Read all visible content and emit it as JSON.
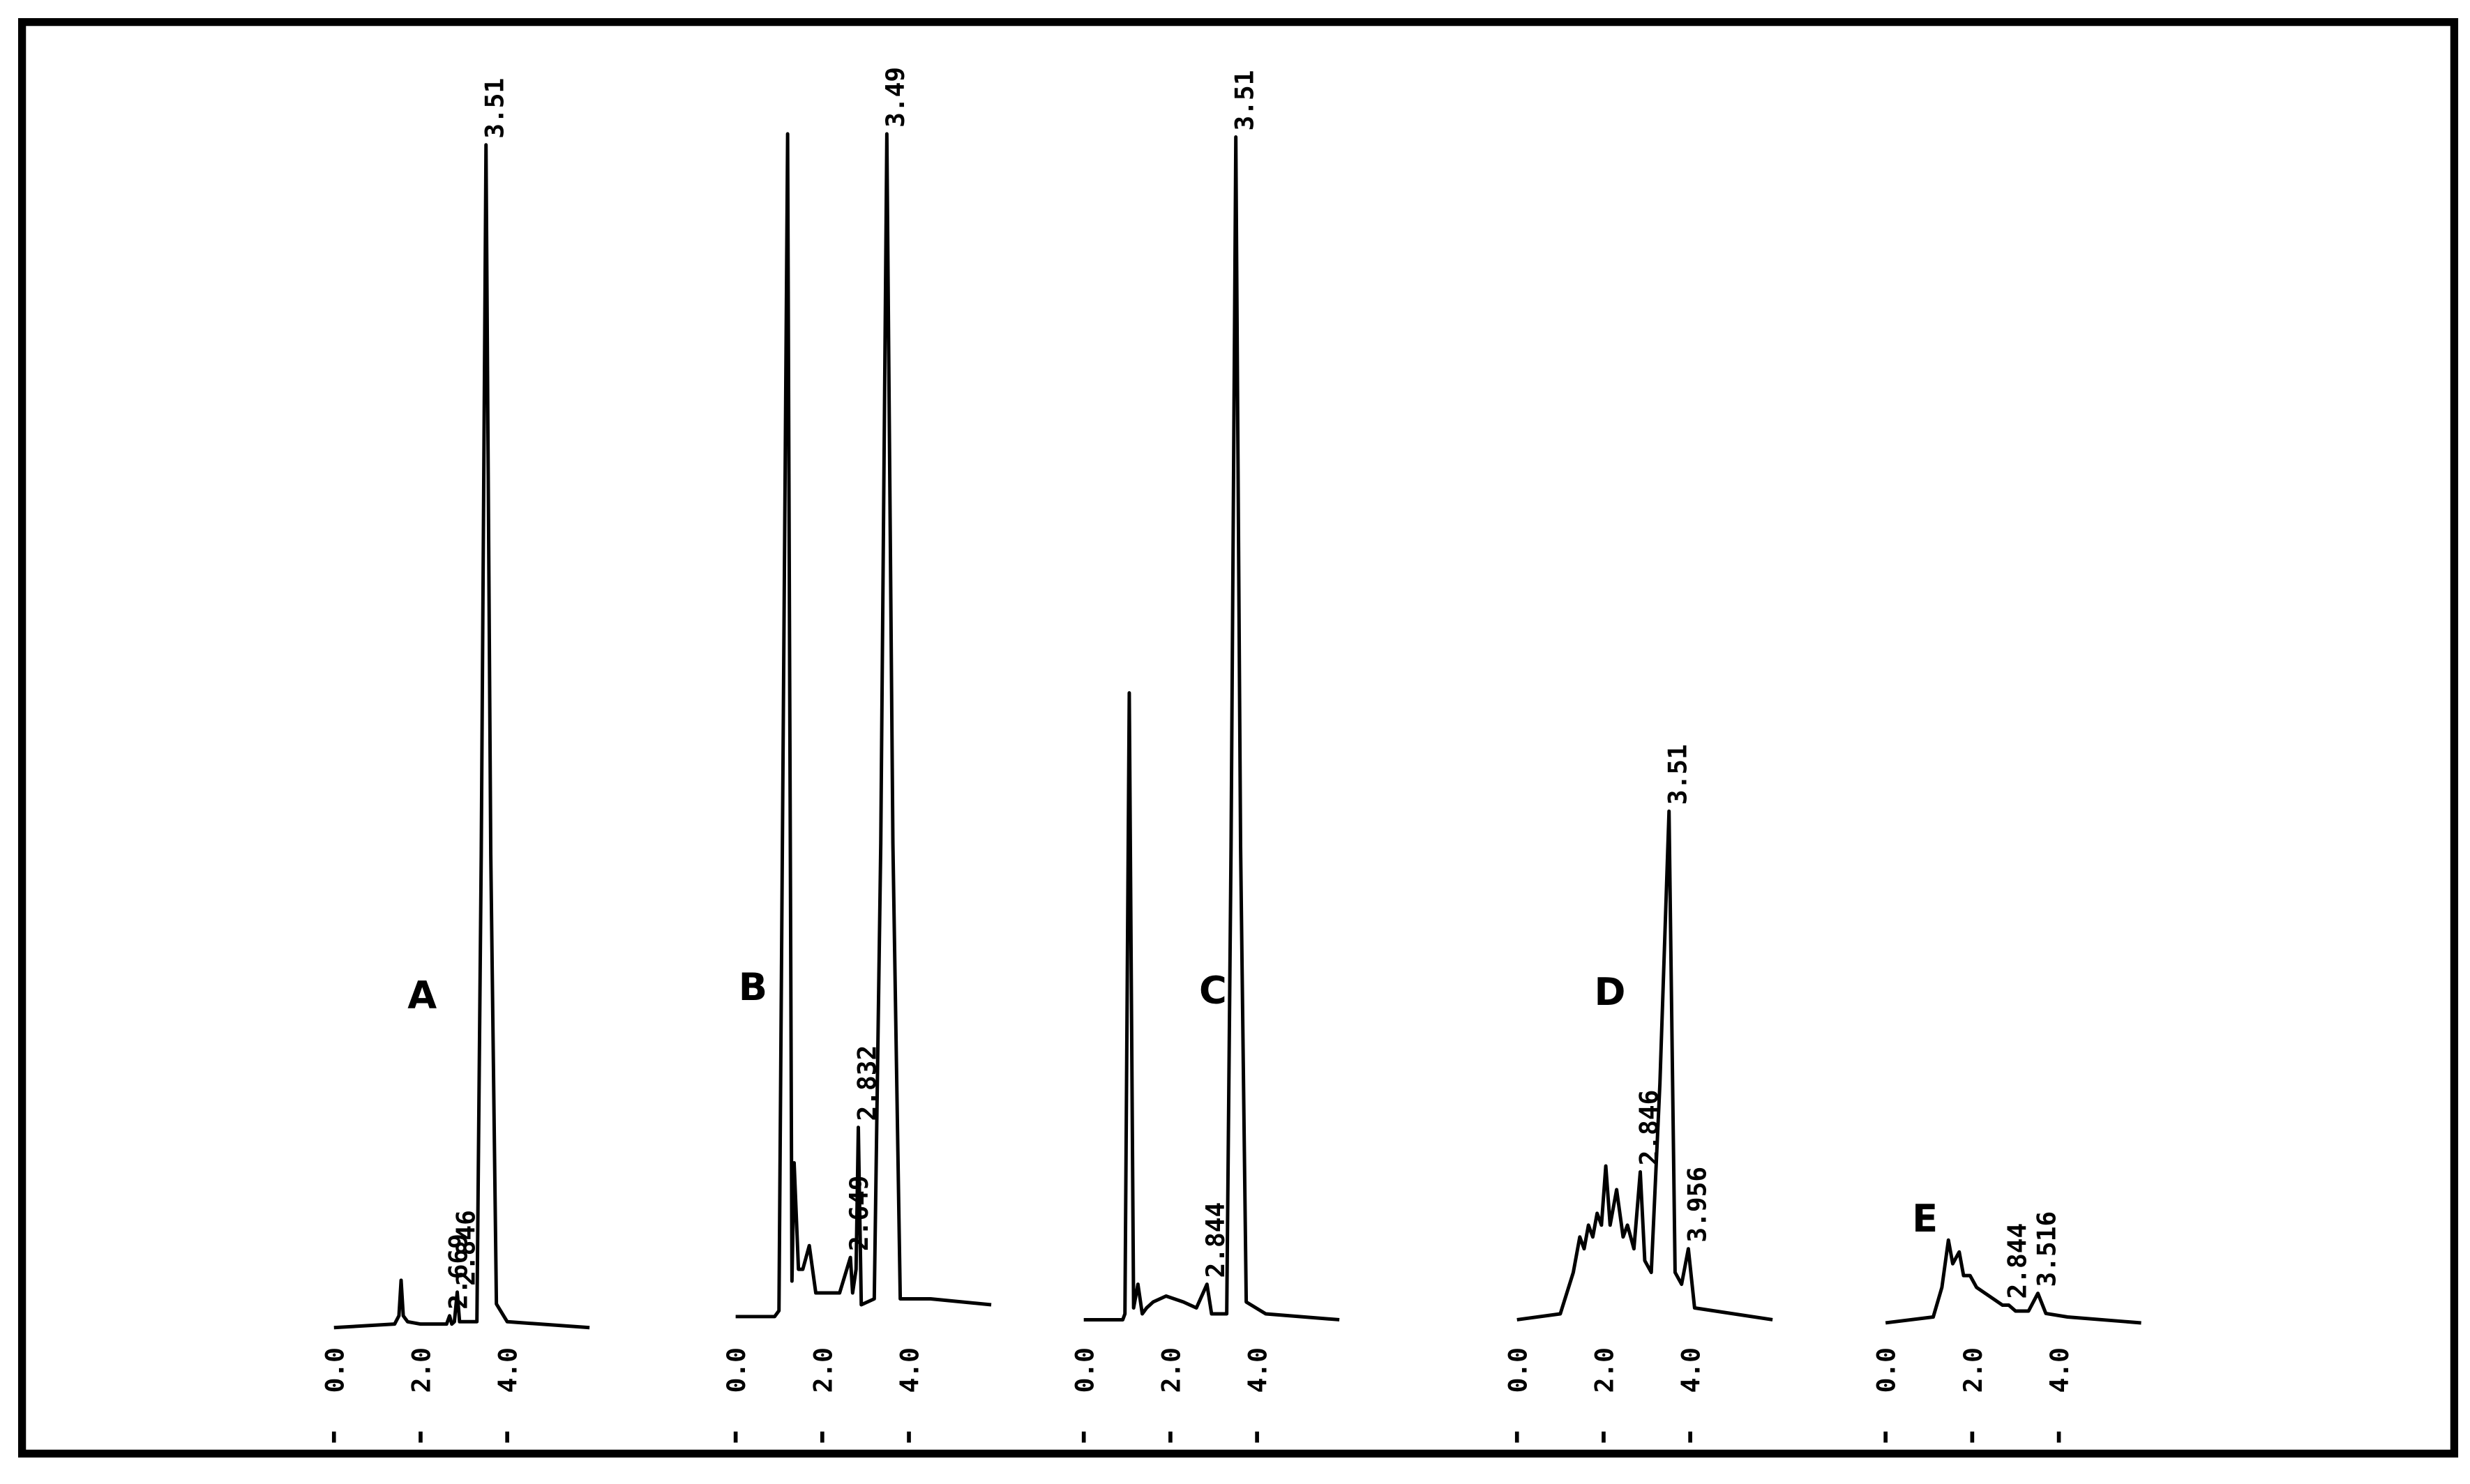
{
  "chart_data": [
    {
      "type": "line",
      "title": "A",
      "x": [
        0,
        1.4,
        1.5,
        1.55,
        1.6,
        1.7,
        2.0,
        2.6,
        2.669,
        2.72,
        2.78,
        2.846,
        2.9,
        3.3,
        3.4,
        3.51,
        3.62,
        3.75,
        4.0,
        5.9
      ],
      "series": [
        {
          "color": "#000000",
          "values": [
            0,
            0.3,
            1,
            4,
            1,
            0.5,
            0.3,
            0.3,
            1,
            0.3,
            0.5,
            3,
            0.5,
            0.5,
            40,
            100,
            40,
            2,
            0.5,
            0
          ]
        }
      ],
      "xlim": [
        0,
        5.9
      ],
      "ylim": [
        0,
        100
      ],
      "xticks": [
        {
          "value": 0,
          "label": "0.0"
        },
        {
          "value": 2,
          "label": "2.0"
        },
        {
          "value": 4,
          "label": "4.0"
        }
      ],
      "annotations": [
        {
          "text": "2.669",
          "x": 2.669,
          "y": 1
        },
        {
          "text": "2.846",
          "x": 2.846,
          "y": 3
        },
        {
          "text": "3.51",
          "x": 3.51,
          "y": 100
        }
      ]
    },
    {
      "type": "line",
      "title": "B",
      "x": [
        0,
        0.9,
        1.0,
        1.2,
        1.3,
        1.35,
        1.45,
        1.55,
        1.7,
        1.85,
        2.0,
        2.4,
        2.649,
        2.7,
        2.78,
        2.832,
        2.9,
        3.2,
        3.35,
        3.49,
        3.63,
        3.8,
        4.5,
        5.9
      ],
      "series": [
        {
          "color": "#000000",
          "values": [
            0,
            0,
            0.5,
            100,
            3,
            13,
            4,
            4,
            6,
            2,
            2,
            2,
            5,
            2,
            4,
            16,
            1,
            1.5,
            40,
            100,
            40,
            1.5,
            1.5,
            1
          ]
        }
      ],
      "xlim": [
        0,
        5.9
      ],
      "ylim": [
        0,
        100
      ],
      "xticks": [
        {
          "value": 0,
          "label": "0.0"
        },
        {
          "value": 2,
          "label": "2.0"
        },
        {
          "value": 4,
          "label": "4.0"
        }
      ],
      "annotations": [
        {
          "text": "2.649",
          "x": 2.649,
          "y": 5
        },
        {
          "text": "2.832",
          "x": 2.832,
          "y": 16
        },
        {
          "text": "3.49",
          "x": 3.49,
          "y": 100
        }
      ]
    },
    {
      "type": "line",
      "title": "C",
      "x": [
        0,
        0.9,
        0.95,
        1.05,
        1.15,
        1.25,
        1.35,
        1.45,
        1.6,
        1.9,
        2.3,
        2.6,
        2.844,
        2.95,
        3.3,
        3.4,
        3.51,
        3.62,
        3.75,
        4.2,
        5.9
      ],
      "series": [
        {
          "color": "#000000",
          "values": [
            0,
            0,
            0.5,
            53,
            1,
            3,
            0.5,
            1,
            1.5,
            2,
            1.5,
            1,
            3,
            0.5,
            0.5,
            40,
            100,
            40,
            1.5,
            0.5,
            0
          ]
        }
      ],
      "xlim": [
        0,
        5.9
      ],
      "ylim": [
        0,
        100
      ],
      "xticks": [
        {
          "value": 0,
          "label": "0.0"
        },
        {
          "value": 2,
          "label": "2.0"
        },
        {
          "value": 4,
          "label": "4.0"
        }
      ],
      "annotations": [
        {
          "text": "2.844",
          "x": 2.844,
          "y": 3
        },
        {
          "text": "3.51",
          "x": 3.51,
          "y": 100
        }
      ]
    },
    {
      "type": "line",
      "title": "D",
      "x": [
        0,
        1.0,
        1.3,
        1.45,
        1.55,
        1.65,
        1.75,
        1.85,
        1.95,
        2.05,
        2.15,
        2.3,
        2.45,
        2.55,
        2.7,
        2.846,
        2.95,
        3.1,
        3.3,
        3.51,
        3.65,
        3.8,
        3.956,
        4.1,
        5.9
      ],
      "series": [
        {
          "color": "#000000",
          "values": [
            0,
            0.5,
            4,
            7,
            6,
            8,
            7,
            9,
            8,
            13,
            8,
            11,
            7,
            8,
            6,
            12.5,
            5,
            4,
            20,
            43,
            4,
            3,
            6,
            1,
            0
          ]
        }
      ],
      "xlim": [
        0,
        5.9
      ],
      "ylim": [
        0,
        100
      ],
      "xticks": [
        {
          "value": 0,
          "label": "0.0"
        },
        {
          "value": 2,
          "label": "2.0"
        },
        {
          "value": 4,
          "label": "4.0"
        }
      ],
      "annotations": [
        {
          "text": "2.846",
          "x": 2.846,
          "y": 12.5
        },
        {
          "text": "3.51",
          "x": 3.51,
          "y": 43
        },
        {
          "text": "3.956",
          "x": 3.956,
          "y": 6
        }
      ]
    },
    {
      "type": "line",
      "title": "E",
      "x": [
        0,
        1.1,
        1.3,
        1.45,
        1.55,
        1.7,
        1.8,
        1.95,
        2.1,
        2.3,
        2.5,
        2.7,
        2.844,
        3.0,
        3.3,
        3.516,
        3.7,
        4.2,
        5.9
      ],
      "series": [
        {
          "color": "#000000",
          "values": [
            0,
            0.5,
            3,
            7,
            5,
            6,
            4,
            4,
            3,
            2.5,
            2,
            1.5,
            1.5,
            1,
            1,
            2.5,
            0.8,
            0.5,
            0
          ]
        }
      ],
      "xlim": [
        0,
        5.9
      ],
      "ylim": [
        0,
        100
      ],
      "xticks": [
        {
          "value": 0,
          "label": "0.0"
        },
        {
          "value": 2,
          "label": "2.0"
        },
        {
          "value": 4,
          "label": "4.0"
        }
      ],
      "annotations": [
        {
          "text": "2.844",
          "x": 2.844,
          "y": 1.5
        },
        {
          "text": "3.516",
          "x": 3.516,
          "y": 2.5
        }
      ]
    }
  ]
}
